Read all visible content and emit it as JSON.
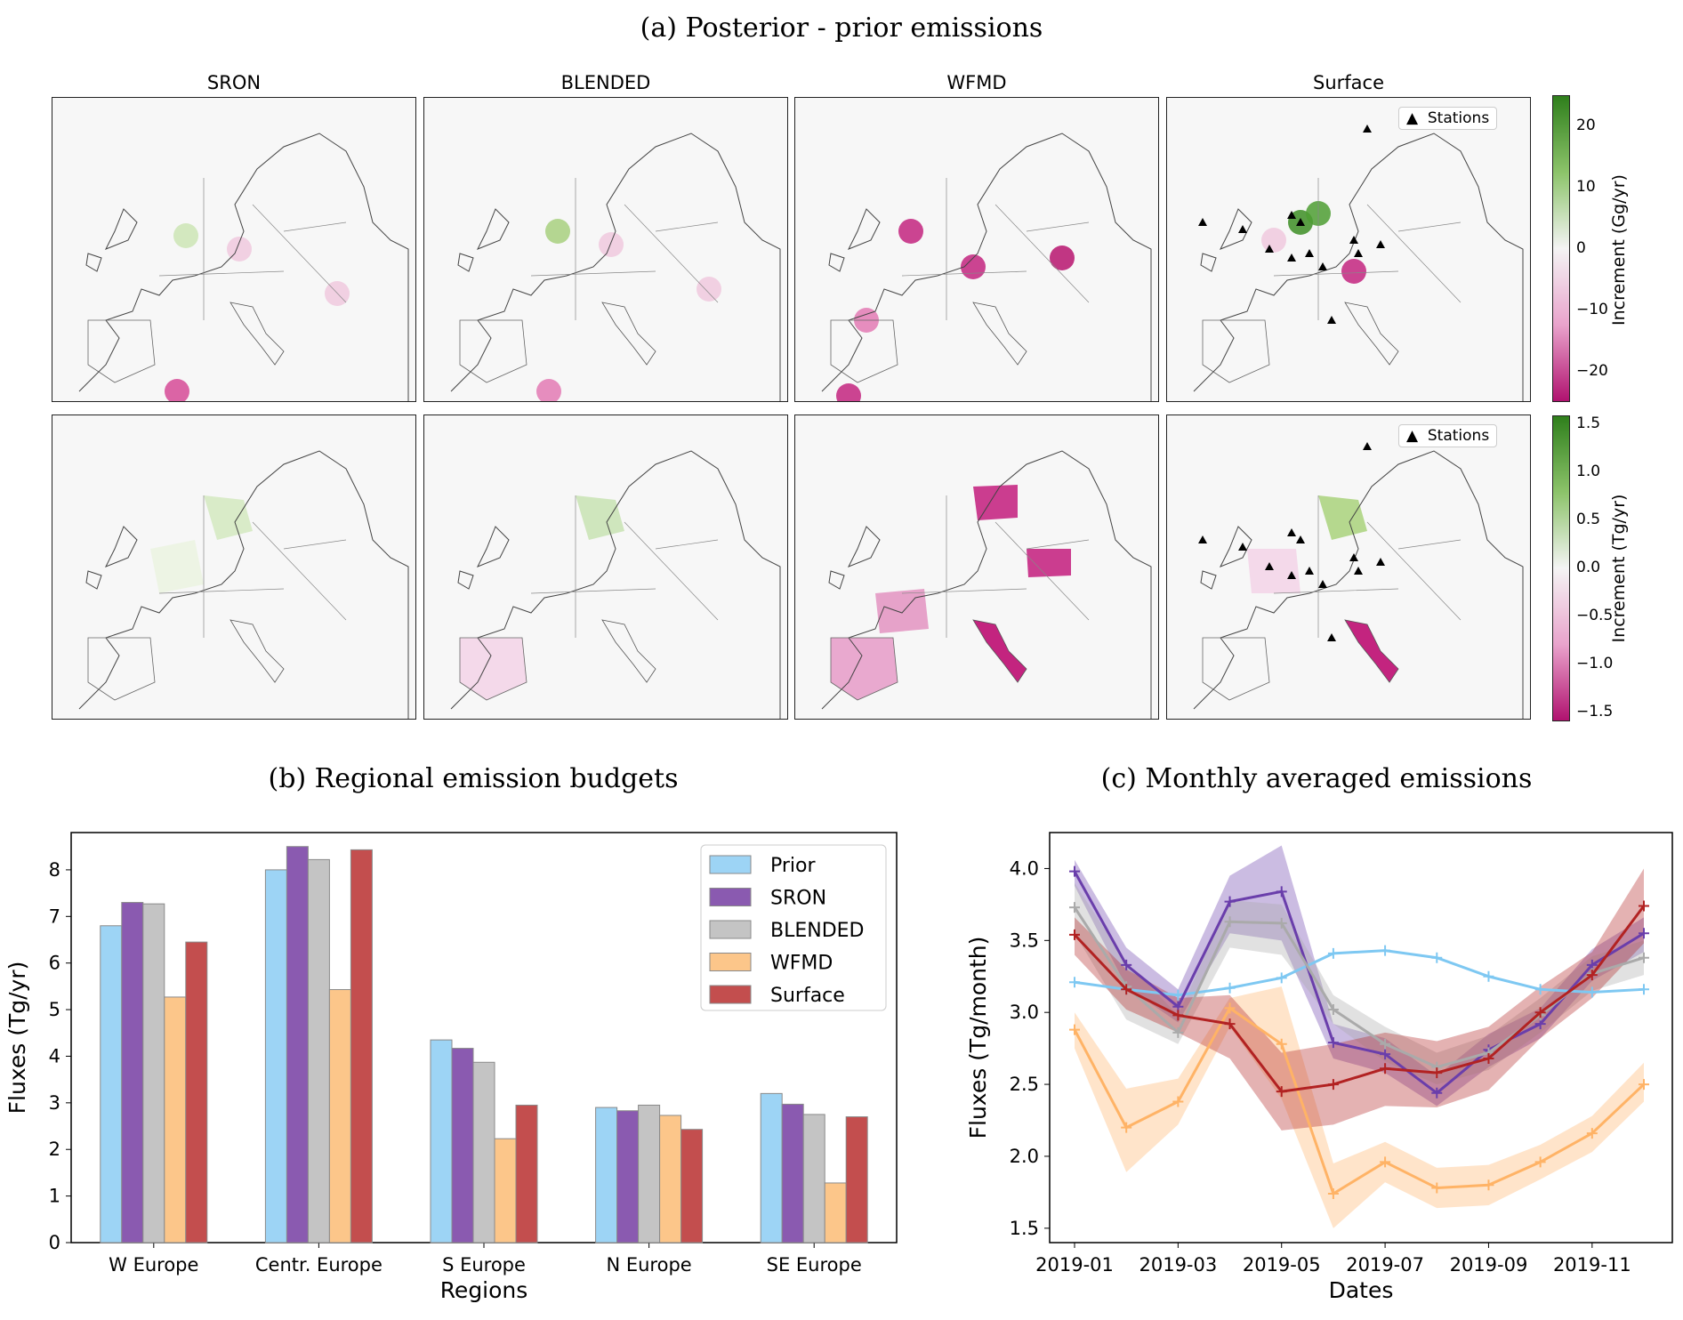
{
  "panel_a": {
    "title": "(a) Posterior - prior emissions",
    "columns": [
      "SRON",
      "BLENDED",
      "WFMD",
      "Surface"
    ],
    "legend_label": "Stations",
    "row1_colorbar": {
      "label": "Increment (Gg/yr)",
      "ticks": [
        "20",
        "10",
        "0",
        "−10",
        "−20"
      ],
      "range": [
        -25,
        25
      ]
    },
    "row2_colorbar": {
      "label": "Increment (Tg/yr)",
      "ticks": [
        "1.5",
        "1.0",
        "0.5",
        "0.0",
        "−0.5",
        "−1.0",
        "−1.5"
      ],
      "range": [
        -1.6,
        1.6
      ]
    },
    "colors": {
      "positive": "#4d9221",
      "negative": "#c51b7d",
      "neutral": "#f7f7f7",
      "border": "#888888"
    }
  },
  "chart_data": [
    {
      "type": "bar",
      "title": "(b) Regional emission budgets",
      "xlabel": "Regions",
      "ylabel": "Fluxes (Tg/yr)",
      "ylim": [
        0,
        8.8
      ],
      "yticks": [
        "0",
        "1",
        "2",
        "3",
        "4",
        "5",
        "6",
        "7",
        "8"
      ],
      "categories": [
        "W Europe",
        "Centr. Europe",
        "S Europe",
        "N Europe",
        "SE Europe"
      ],
      "legend_position": "top-right",
      "series": [
        {
          "name": "Prior",
          "color": "#9dd4f5",
          "values": [
            6.8,
            8.0,
            4.35,
            2.9,
            3.2
          ]
        },
        {
          "name": "SRON",
          "color": "#8a5ab0",
          "values": [
            7.3,
            8.5,
            4.17,
            2.83,
            2.97
          ]
        },
        {
          "name": "BLENDED",
          "color": "#c4c4c4",
          "values": [
            7.27,
            8.22,
            3.87,
            2.95,
            2.75
          ]
        },
        {
          "name": "WFMD",
          "color": "#fcc68a",
          "values": [
            5.27,
            5.43,
            2.23,
            2.73,
            1.28
          ]
        },
        {
          "name": "Surface",
          "color": "#c34e4e",
          "values": [
            6.45,
            8.43,
            2.95,
            2.43,
            2.7
          ]
        }
      ]
    },
    {
      "type": "line",
      "title": "(c) Monthly averaged emissions",
      "xlabel": "Dates",
      "ylabel": "Fluxes (Tg/month)",
      "ylim": [
        1.4,
        4.25
      ],
      "yticks": [
        "1.5",
        "2.0",
        "2.5",
        "3.0",
        "3.5",
        "4.0"
      ],
      "x": [
        "2019-01",
        "2019-02",
        "2019-03",
        "2019-04",
        "2019-05",
        "2019-06",
        "2019-07",
        "2019-08",
        "2019-09",
        "2019-10",
        "2019-11",
        "2019-12"
      ],
      "xticks": [
        "2019-01",
        "2019-03",
        "2019-05",
        "2019-07",
        "2019-09",
        "2019-11"
      ],
      "series": [
        {
          "color": "#7ec8f2",
          "values": [
            3.21,
            3.16,
            3.12,
            3.17,
            3.24,
            3.41,
            3.43,
            3.38,
            3.25,
            3.16,
            3.14,
            3.16
          ],
          "band": null
        },
        {
          "color": "#6a3eab",
          "values": [
            3.98,
            3.33,
            3.04,
            3.77,
            3.84,
            2.79,
            2.71,
            2.44,
            2.74,
            2.92,
            3.33,
            3.55
          ],
          "lower": [
            3.88,
            3.18,
            2.93,
            3.55,
            3.5,
            2.68,
            2.58,
            2.35,
            2.62,
            2.82,
            3.22,
            3.42
          ],
          "upper": [
            4.06,
            3.45,
            3.16,
            3.95,
            4.16,
            2.92,
            2.82,
            2.56,
            2.85,
            3.03,
            3.44,
            3.66
          ]
        },
        {
          "color": "#aaaaaa",
          "values": [
            3.73,
            3.18,
            2.86,
            3.63,
            3.62,
            3.02,
            2.78,
            2.62,
            2.72,
            2.98,
            3.27,
            3.38
          ],
          "lower": [
            3.55,
            2.95,
            2.78,
            3.45,
            3.4,
            2.92,
            2.66,
            2.5,
            2.6,
            2.86,
            3.15,
            3.26
          ],
          "upper": [
            3.9,
            3.35,
            2.98,
            3.78,
            3.75,
            3.12,
            2.9,
            2.72,
            2.84,
            3.1,
            3.39,
            3.5
          ]
        },
        {
          "color": "#ffb366",
          "values": [
            2.88,
            2.2,
            2.38,
            3.03,
            2.78,
            1.74,
            1.96,
            1.78,
            1.8,
            1.96,
            2.16,
            2.5
          ],
          "lower": [
            2.75,
            1.89,
            2.22,
            2.9,
            2.4,
            1.5,
            1.82,
            1.64,
            1.66,
            1.84,
            2.03,
            2.38
          ],
          "upper": [
            3.0,
            2.47,
            2.54,
            3.1,
            3.18,
            1.95,
            2.1,
            1.92,
            1.94,
            2.08,
            2.28,
            2.65
          ]
        },
        {
          "color": "#b22222",
          "values": [
            3.54,
            3.16,
            2.98,
            2.92,
            2.45,
            2.5,
            2.61,
            2.58,
            2.68,
            3.0,
            3.26,
            3.74
          ],
          "lower": [
            3.4,
            3.02,
            2.86,
            2.68,
            2.18,
            2.22,
            2.35,
            2.34,
            2.46,
            2.82,
            3.1,
            3.48
          ],
          "upper": [
            3.66,
            3.3,
            3.1,
            3.12,
            2.72,
            2.78,
            2.86,
            2.8,
            2.9,
            3.18,
            3.42,
            4.0
          ]
        }
      ]
    }
  ]
}
